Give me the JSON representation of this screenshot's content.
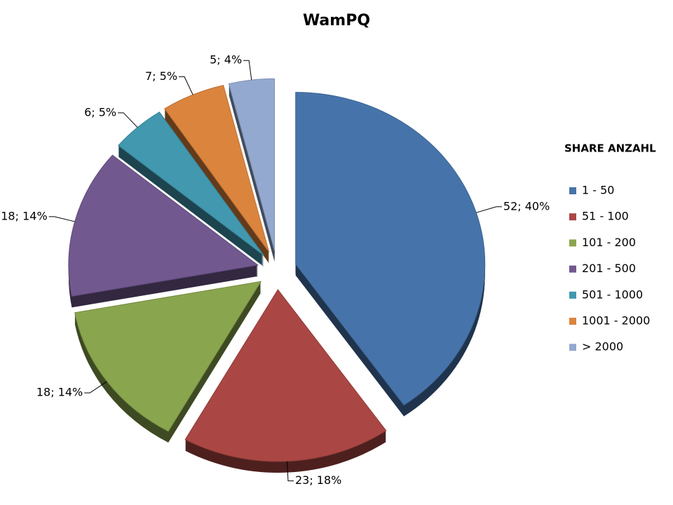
{
  "chart_data": {
    "type": "pie",
    "title": "WamPQ",
    "legend_title": "SHARE ANZAHL",
    "categories": [
      "1 - 50",
      "51 - 100",
      "101 - 200",
      "201 - 500",
      "501 - 1000",
      "1001 - 2000",
      "> 2000"
    ],
    "values": [
      52,
      23,
      18,
      18,
      6,
      7,
      5
    ],
    "value_labels": [
      "52; 40%",
      "23; 18%",
      "18; 14%",
      "18; 14%",
      "6; 5%",
      "7; 5%",
      "5; 4%"
    ],
    "colors": [
      "#4674aa",
      "#aa4643",
      "#89a54e",
      "#71588f",
      "#4198af",
      "#db843d",
      "#93a9cf"
    ],
    "legend": "right"
  }
}
